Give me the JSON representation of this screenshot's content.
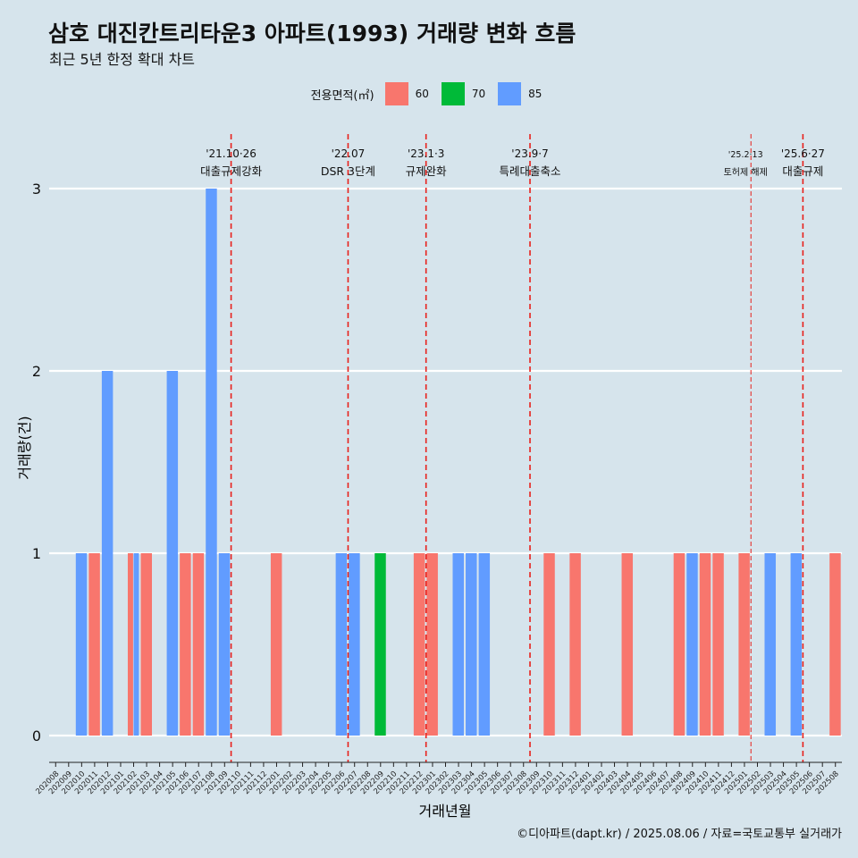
{
  "title": "삼호 대진칸트리타운3 아파트(1993) 거래량 변화 흐름",
  "subtitle": "최근 5년 한정 확대 차트",
  "legend": {
    "title": "전용면적(㎡)",
    "items": [
      {
        "label": "60",
        "color": "#f8766d"
      },
      {
        "label": "70",
        "color": "#00ba38"
      },
      {
        "label": "85",
        "color": "#619cff"
      }
    ]
  },
  "caption": "©디아파트(dapt.kr) / 2025.08.06 / 자료=국토교통부 실거래가",
  "chart_data": {
    "type": "bar",
    "xlabel": "거래년월",
    "ylabel": "거래량(건)",
    "ylim": [
      0,
      3
    ],
    "yticks": [
      0,
      1,
      2,
      3
    ],
    "categories": [
      "202008",
      "202009",
      "202010",
      "202011",
      "202012",
      "202101",
      "202102",
      "202103",
      "202104",
      "202105",
      "202106",
      "202107",
      "202108",
      "202109",
      "202110",
      "202111",
      "202112",
      "202201",
      "202202",
      "202203",
      "202204",
      "202205",
      "202206",
      "202207",
      "202208",
      "202209",
      "202210",
      "202211",
      "202212",
      "202301",
      "202302",
      "202303",
      "202304",
      "202305",
      "202306",
      "202307",
      "202308",
      "202309",
      "202310",
      "202311",
      "202312",
      "202401",
      "202402",
      "202403",
      "202404",
      "202405",
      "202406",
      "202407",
      "202408",
      "202409",
      "202410",
      "202411",
      "202412",
      "202501",
      "202502",
      "202503",
      "202504",
      "202505",
      "202506",
      "202507",
      "202508"
    ],
    "series": [
      {
        "name": "60",
        "color": "#f8766d",
        "values": [
          0,
          0,
          0,
          1,
          0,
          0,
          1,
          1,
          0,
          0,
          1,
          1,
          0,
          0,
          0,
          0,
          0,
          1,
          0,
          0,
          0,
          0,
          0,
          0,
          0,
          0,
          0,
          0,
          1,
          1,
          0,
          0,
          0,
          0,
          0,
          0,
          0,
          0,
          1,
          0,
          1,
          0,
          0,
          0,
          1,
          0,
          0,
          0,
          1,
          0,
          1,
          1,
          0,
          1,
          0,
          0,
          0,
          0,
          0,
          0,
          1
        ]
      },
      {
        "name": "70",
        "color": "#00ba38",
        "values": [
          0,
          0,
          0,
          0,
          0,
          0,
          0,
          0,
          0,
          0,
          0,
          0,
          0,
          0,
          0,
          0,
          0,
          0,
          0,
          0,
          0,
          0,
          0,
          0,
          0,
          1,
          0,
          0,
          0,
          0,
          0,
          0,
          0,
          0,
          0,
          0,
          0,
          0,
          0,
          0,
          0,
          0,
          0,
          0,
          0,
          0,
          0,
          0,
          0,
          0,
          0,
          0,
          0,
          0,
          0,
          0,
          0,
          0,
          0,
          0,
          0
        ]
      },
      {
        "name": "85",
        "color": "#619cff",
        "values": [
          0,
          0,
          1,
          0,
          2,
          0,
          1,
          0,
          0,
          2,
          0,
          0,
          3,
          1,
          0,
          0,
          0,
          0,
          0,
          0,
          0,
          0,
          1,
          1,
          0,
          0,
          0,
          0,
          0,
          0,
          0,
          1,
          1,
          1,
          0,
          0,
          0,
          0,
          0,
          0,
          0,
          0,
          0,
          0,
          0,
          0,
          0,
          0,
          0,
          1,
          0,
          0,
          0,
          0,
          0,
          1,
          0,
          1,
          0,
          0,
          0
        ]
      }
    ],
    "annotations": [
      {
        "date": "'21.10·26",
        "label": "대출규제강화",
        "at": "202110"
      },
      {
        "date": "'22.07",
        "label": "DSR 3단계",
        "at": "202207"
      },
      {
        "date": "'23.1·3",
        "label": "규제완화",
        "at": "202301"
      },
      {
        "date": "'23.9·7",
        "label": "특례대출축소",
        "at": "202309"
      },
      {
        "date": "'25.2·13",
        "label": "토허제 해제",
        "at": "202502"
      },
      {
        "date": "'25.6·27",
        "label": "대출규제",
        "at": "202506"
      }
    ],
    "grid": true,
    "legend_position": "top"
  }
}
